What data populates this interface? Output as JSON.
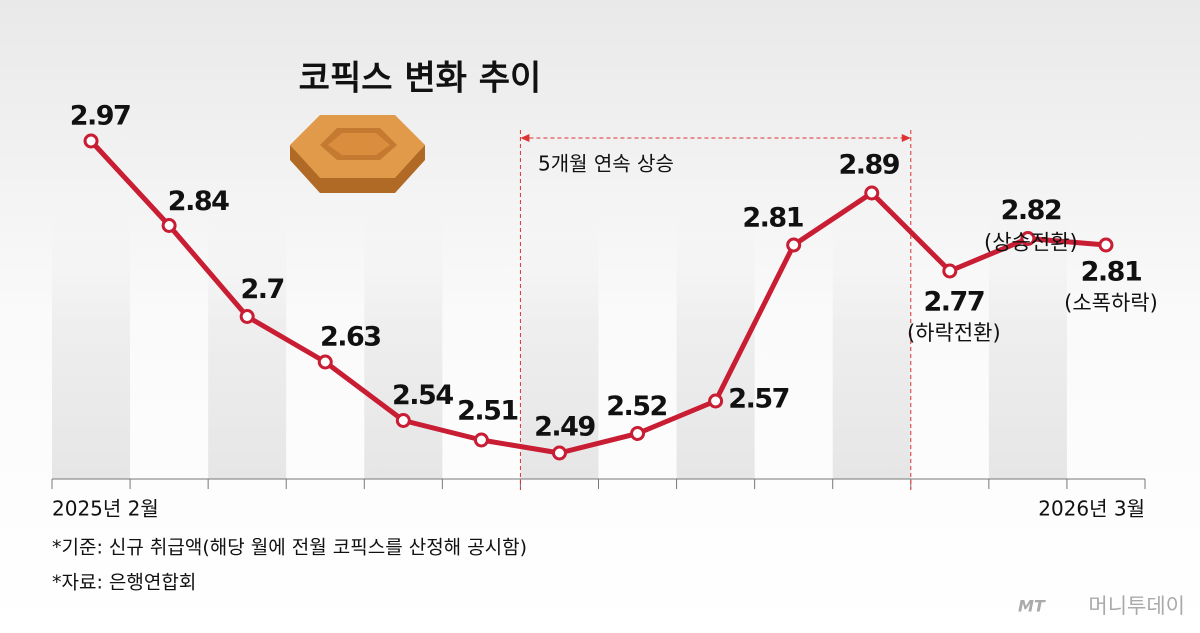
{
  "chart_data": {
    "type": "line",
    "title": "코픽스 변화 추이",
    "categories": [
      "2025년 2월",
      null,
      null,
      null,
      null,
      null,
      null,
      null,
      null,
      null,
      null,
      null,
      null,
      "2026년 3월"
    ],
    "series": [
      {
        "name": "코픽스",
        "color": "#c81d33",
        "values": [
          2.97,
          2.84,
          2.7,
          2.63,
          2.54,
          2.51,
          2.49,
          2.52,
          2.57,
          2.81,
          2.89,
          2.77,
          2.82,
          2.81
        ],
        "point_notes": [
          null,
          null,
          null,
          null,
          null,
          null,
          null,
          null,
          null,
          null,
          null,
          "(하락전환)",
          "(상승전환)",
          "(소폭하락)"
        ]
      }
    ],
    "ylim": [
      2.45,
      3.0
    ],
    "span_annotation": "5개월 연속 상승",
    "footnotes": [
      "*기준: 신규 취급액(해당 월에 전월 코픽스를 산정해 공시함)",
      "*자료: 은행연합회"
    ],
    "watermark_logo": "MT",
    "watermark": "머니투데이"
  }
}
